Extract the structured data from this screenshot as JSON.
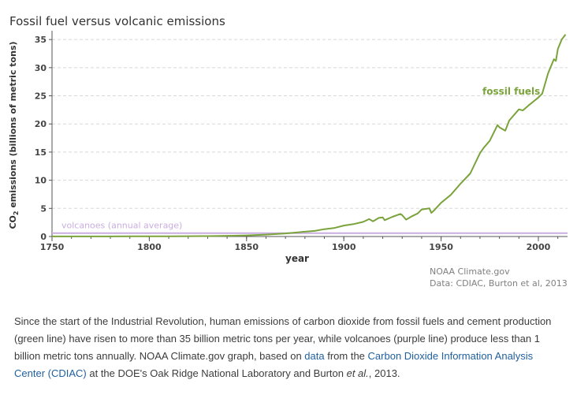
{
  "chart_data": {
    "type": "line",
    "title": "Fossil fuel versus volcanic emissions",
    "xlabel": "year",
    "ylabel": "CO₂ emissions (billions of metric tons)",
    "ylabel_prefix": "CO",
    "ylabel_sub": "2",
    "ylabel_rest": " emissions (billions of metric tons)",
    "xlim": [
      1750,
      2015
    ],
    "ylim": [
      0,
      36
    ],
    "x_ticks": [
      1750,
      1800,
      1850,
      1900,
      1950,
      2000
    ],
    "y_ticks": [
      0,
      5,
      10,
      15,
      20,
      25,
      30,
      35
    ],
    "grid": "horizontal dashed",
    "colors": {
      "fossil": "#7aa33c",
      "volcano": "#c9aee0",
      "grid": "#d8d8d8",
      "axis": "#555555"
    },
    "series": [
      {
        "name": "fossil fuels",
        "x": [
          1750,
          1760,
          1770,
          1780,
          1790,
          1800,
          1810,
          1820,
          1830,
          1840,
          1850,
          1860,
          1870,
          1880,
          1885,
          1890,
          1895,
          1900,
          1905,
          1910,
          1913,
          1915,
          1918,
          1920,
          1921,
          1925,
          1929,
          1930,
          1932,
          1935,
          1938,
          1940,
          1944,
          1945,
          1946,
          1950,
          1955,
          1960,
          1965,
          1970,
          1972,
          1975,
          1979,
          1980,
          1983,
          1985,
          1990,
          1992,
          1995,
          2000,
          2002,
          2005,
          2008,
          2009,
          2010,
          2012,
          2014
        ],
        "y": [
          0.01,
          0.01,
          0.02,
          0.02,
          0.03,
          0.03,
          0.04,
          0.05,
          0.07,
          0.12,
          0.2,
          0.33,
          0.54,
          0.86,
          1.0,
          1.3,
          1.5,
          1.95,
          2.2,
          2.6,
          3.1,
          2.7,
          3.3,
          3.4,
          2.9,
          3.5,
          4.0,
          3.8,
          3.0,
          3.6,
          4.1,
          4.8,
          5.0,
          4.2,
          4.5,
          6.0,
          7.4,
          9.4,
          11.2,
          14.8,
          15.8,
          17.0,
          19.8,
          19.4,
          18.8,
          20.6,
          22.6,
          22.4,
          23.3,
          24.7,
          25.4,
          29.0,
          31.5,
          31.2,
          33.3,
          35.0,
          35.9
        ]
      }
    ],
    "volcano": {
      "name": "volcanoes (annual average)",
      "value": 0.6
    },
    "credit_lines": [
      "NOAA Climate.gov",
      "Data: CDIAC, Burton et al, 2013"
    ]
  },
  "caption": {
    "part1": "Since the start of the Industrial Revolution, human emissions of carbon dioxide from fossil fuels and cement production (green line) have risen to more than 35 billion metric tons per year, while volcanoes (purple line) produce less than 1 billion metric tons annually. NOAA Climate.gov graph, based on ",
    "link_data": "data",
    "part2": " from the ",
    "link_cdiac": "Carbon Dioxide Information Analysis Center (CDIAC)",
    "part3": " at the DOE's Oak Ridge National Laboratory and Burton ",
    "et_al": "et al.",
    "part4": ", 2013."
  }
}
